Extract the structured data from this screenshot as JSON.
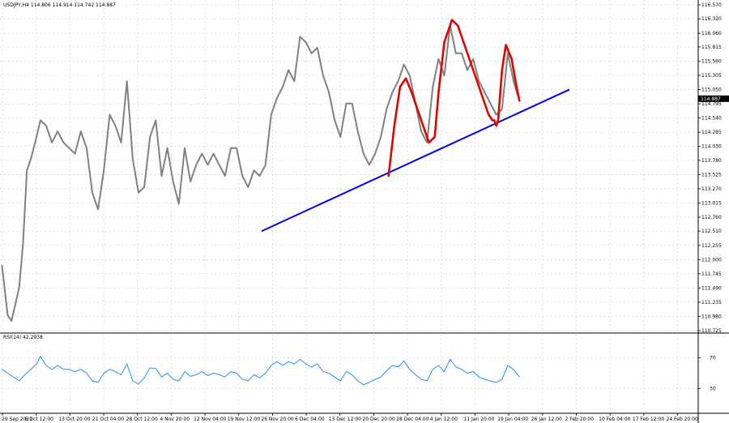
{
  "header": {
    "main": "USDJPY,H4  114.806 114.914 114.742 114.887",
    "rsi": "RSI(14) 42.2938"
  },
  "colors": {
    "price": "#808080",
    "rsi": "#1e90ff",
    "trendline": "#0000e6",
    "pattern": "#e60000",
    "grid": "#c8c8c8",
    "current_price_box": "#000000"
  },
  "chart_data": [
    {
      "type": "line",
      "title": "USDJPY,H4",
      "current_price": 114.887,
      "ylim": [
        110.725,
        116.57
      ],
      "yticks": [
        116.57,
        116.32,
        116.06,
        115.815,
        115.56,
        115.305,
        115.05,
        114.795,
        114.54,
        114.285,
        114.03,
        113.78,
        113.525,
        113.27,
        113.015,
        112.76,
        112.51,
        112.255,
        112.0,
        111.745,
        111.49,
        111.235,
        110.98,
        110.725
      ],
      "ytick_labels": [
        "116.570",
        "116.320",
        "116.060",
        "115.815",
        "115.560",
        "115.305",
        "115.050",
        "114.795",
        "114.540",
        "114.285",
        "114.030",
        "113.780",
        "113.525",
        "113.270",
        "113.015",
        "112.760",
        "112.510",
        "112.255",
        "112.000",
        "111.745",
        "111.490",
        "111.235",
        "110.980",
        "110.725"
      ],
      "xtick_labels": [
        "29 Sep 2021",
        "6 Oct 12:00",
        "13 Oct 20:00",
        "21 Oct 04:00",
        "28 Oct 12:00",
        "4 Nov 20:00",
        "12 Nov 04:00",
        "19 Nov 12:00",
        "26 Nov 20:00",
        "6 Dec 04:00",
        "13 Dec 12:00",
        "20 Dec 20:00",
        "28 Dec 04:00",
        "4 Jan 12:00",
        "11 Jan 20:00",
        "19 Jan 04:00",
        "26 Jan 12:00",
        "2 Feb 20:00",
        "10 Feb 04:00",
        "17 Feb 12:00",
        "24 Feb 20:00"
      ],
      "xtick_pos": [
        0,
        17.55,
        35.1,
        52.65,
        70.2,
        87.75,
        105.3,
        122.85,
        140.4,
        157.95,
        175.5,
        193.05,
        210.6,
        228.15,
        245.7,
        263.25,
        280.8,
        298.35,
        315.9,
        333.45,
        351.0
      ],
      "xlim": [
        0,
        363
      ],
      "price_series": [
        [
          1,
          111.9
        ],
        [
          4,
          111.0
        ],
        [
          6,
          110.9
        ],
        [
          10,
          111.5
        ],
        [
          12,
          112.3
        ],
        [
          14,
          113.6
        ],
        [
          16,
          113.8
        ],
        [
          19,
          114.2
        ],
        [
          21,
          114.5
        ],
        [
          24,
          114.4
        ],
        [
          27,
          114.1
        ],
        [
          30,
          114.3
        ],
        [
          33,
          114.1
        ],
        [
          36,
          114.0
        ],
        [
          39,
          113.9
        ],
        [
          42,
          114.3
        ],
        [
          45,
          114.0
        ],
        [
          48,
          113.2
        ],
        [
          51,
          112.9
        ],
        [
          54,
          113.6
        ],
        [
          57,
          114.6
        ],
        [
          60,
          114.4
        ],
        [
          63,
          114.1
        ],
        [
          66,
          115.2
        ],
        [
          69,
          113.8
        ],
        [
          72,
          113.2
        ],
        [
          75,
          113.3
        ],
        [
          78,
          114.2
        ],
        [
          81,
          114.5
        ],
        [
          84,
          113.5
        ],
        [
          87,
          114.0
        ],
        [
          90,
          113.4
        ],
        [
          93,
          113.0
        ],
        [
          96,
          114.0
        ],
        [
          99,
          113.4
        ],
        [
          102,
          113.7
        ],
        [
          105,
          113.9
        ],
        [
          108,
          113.7
        ],
        [
          111,
          113.9
        ],
        [
          114,
          113.7
        ],
        [
          117,
          113.5
        ],
        [
          120,
          114.0
        ],
        [
          123,
          114.0
        ],
        [
          126,
          113.5
        ],
        [
          129,
          113.3
        ],
        [
          132,
          113.6
        ],
        [
          135,
          113.5
        ],
        [
          138,
          113.7
        ],
        [
          141,
          114.6
        ],
        [
          144,
          114.9
        ],
        [
          147,
          115.1
        ],
        [
          150,
          115.4
        ],
        [
          153,
          115.2
        ],
        [
          156,
          116.0
        ],
        [
          159,
          115.9
        ],
        [
          162,
          115.7
        ],
        [
          165,
          115.8
        ],
        [
          168,
          115.3
        ],
        [
          171,
          115.0
        ],
        [
          174,
          114.5
        ],
        [
          177,
          114.2
        ],
        [
          180,
          114.8
        ],
        [
          183,
          114.8
        ],
        [
          186,
          114.3
        ],
        [
          189,
          113.9
        ],
        [
          192,
          113.7
        ],
        [
          195,
          113.9
        ],
        [
          198,
          114.2
        ],
        [
          201,
          114.7
        ],
        [
          204,
          115.0
        ],
        [
          207,
          115.2
        ],
        [
          210,
          115.5
        ],
        [
          213,
          115.3
        ],
        [
          216,
          114.8
        ],
        [
          219,
          114.3
        ],
        [
          222,
          114.1
        ],
        [
          225,
          115.1
        ],
        [
          228,
          115.6
        ],
        [
          231,
          115.3
        ],
        [
          234,
          116.2
        ],
        [
          237,
          115.7
        ],
        [
          240,
          115.7
        ],
        [
          243,
          115.4
        ],
        [
          246,
          115.6
        ],
        [
          249,
          115.2
        ],
        [
          252,
          115.0
        ],
        [
          255,
          114.8
        ],
        [
          258,
          114.6
        ],
        [
          261,
          114.7
        ],
        [
          264,
          115.7
        ],
        [
          267,
          115.2
        ],
        [
          270,
          114.85
        ]
      ],
      "trendline": [
        [
          136,
          112.51
        ],
        [
          296,
          115.05
        ]
      ],
      "pattern_path": [
        [
          202,
          113.5
        ],
        [
          205,
          114.4
        ],
        [
          208,
          115.1
        ],
        [
          211,
          115.25
        ],
        [
          214,
          115.0
        ],
        [
          217,
          114.7
        ],
        [
          220,
          114.4
        ],
        [
          223,
          114.1
        ],
        [
          226,
          114.2
        ],
        [
          228,
          115.0
        ],
        [
          231,
          115.9
        ],
        [
          235,
          116.3
        ],
        [
          238,
          116.2
        ],
        [
          242,
          115.8
        ],
        [
          246,
          115.4
        ],
        [
          250,
          115.0
        ],
        [
          254,
          114.6
        ],
        [
          256,
          114.5
        ],
        [
          257,
          114.5
        ],
        [
          258,
          114.4
        ],
        [
          259,
          114.5
        ],
        [
          261,
          115.4
        ],
        [
          263,
          115.85
        ],
        [
          266,
          115.6
        ],
        [
          268,
          115.2
        ],
        [
          270,
          114.85
        ]
      ]
    },
    {
      "type": "line",
      "title": "RSI(14)",
      "value": 42.2938,
      "ylim": [
        0,
        100
      ],
      "yticks": [
        70,
        30
      ],
      "ytick_labels": [
        "70",
        "30"
      ],
      "series": [
        [
          1,
          55
        ],
        [
          4,
          50
        ],
        [
          7,
          45
        ],
        [
          10,
          40
        ],
        [
          13,
          48
        ],
        [
          16,
          55
        ],
        [
          19,
          62
        ],
        [
          21,
          72
        ],
        [
          24,
          60
        ],
        [
          27,
          55
        ],
        [
          30,
          60
        ],
        [
          33,
          55
        ],
        [
          36,
          55
        ],
        [
          39,
          52
        ],
        [
          42,
          55
        ],
        [
          45,
          50
        ],
        [
          48,
          40
        ],
        [
          51,
          38
        ],
        [
          54,
          50
        ],
        [
          57,
          55
        ],
        [
          60,
          52
        ],
        [
          63,
          48
        ],
        [
          66,
          62
        ],
        [
          69,
          40
        ],
        [
          72,
          36
        ],
        [
          75,
          44
        ],
        [
          78,
          57
        ],
        [
          81,
          56
        ],
        [
          84,
          45
        ],
        [
          87,
          50
        ],
        [
          90,
          42
        ],
        [
          93,
          40
        ],
        [
          96,
          52
        ],
        [
          99,
          46
        ],
        [
          102,
          48
        ],
        [
          105,
          52
        ],
        [
          108,
          47
        ],
        [
          111,
          50
        ],
        [
          114,
          48
        ],
        [
          117,
          45
        ],
        [
          120,
          52
        ],
        [
          123,
          50
        ],
        [
          126,
          42
        ],
        [
          129,
          40
        ],
        [
          132,
          48
        ],
        [
          135,
          44
        ],
        [
          138,
          50
        ],
        [
          141,
          60
        ],
        [
          144,
          65
        ],
        [
          147,
          60
        ],
        [
          150,
          65
        ],
        [
          153,
          62
        ],
        [
          156,
          68
        ],
        [
          159,
          62
        ],
        [
          162,
          58
        ],
        [
          165,
          62
        ],
        [
          168,
          52
        ],
        [
          171,
          50
        ],
        [
          174,
          45
        ],
        [
          177,
          40
        ],
        [
          180,
          52
        ],
        [
          183,
          48
        ],
        [
          186,
          40
        ],
        [
          189,
          35
        ],
        [
          192,
          38
        ],
        [
          195,
          42
        ],
        [
          198,
          45
        ],
        [
          201,
          53
        ],
        [
          204,
          60
        ],
        [
          207,
          58
        ],
        [
          210,
          66
        ],
        [
          213,
          55
        ],
        [
          216,
          48
        ],
        [
          219,
          42
        ],
        [
          222,
          40
        ],
        [
          225,
          55
        ],
        [
          228,
          60
        ],
        [
          231,
          52
        ],
        [
          234,
          68
        ],
        [
          237,
          58
        ],
        [
          240,
          55
        ],
        [
          243,
          50
        ],
        [
          246,
          52
        ],
        [
          249,
          45
        ],
        [
          252,
          42
        ],
        [
          255,
          40
        ],
        [
          258,
          38
        ],
        [
          261,
          42
        ],
        [
          264,
          60
        ],
        [
          267,
          55
        ],
        [
          270,
          45
        ]
      ]
    }
  ]
}
